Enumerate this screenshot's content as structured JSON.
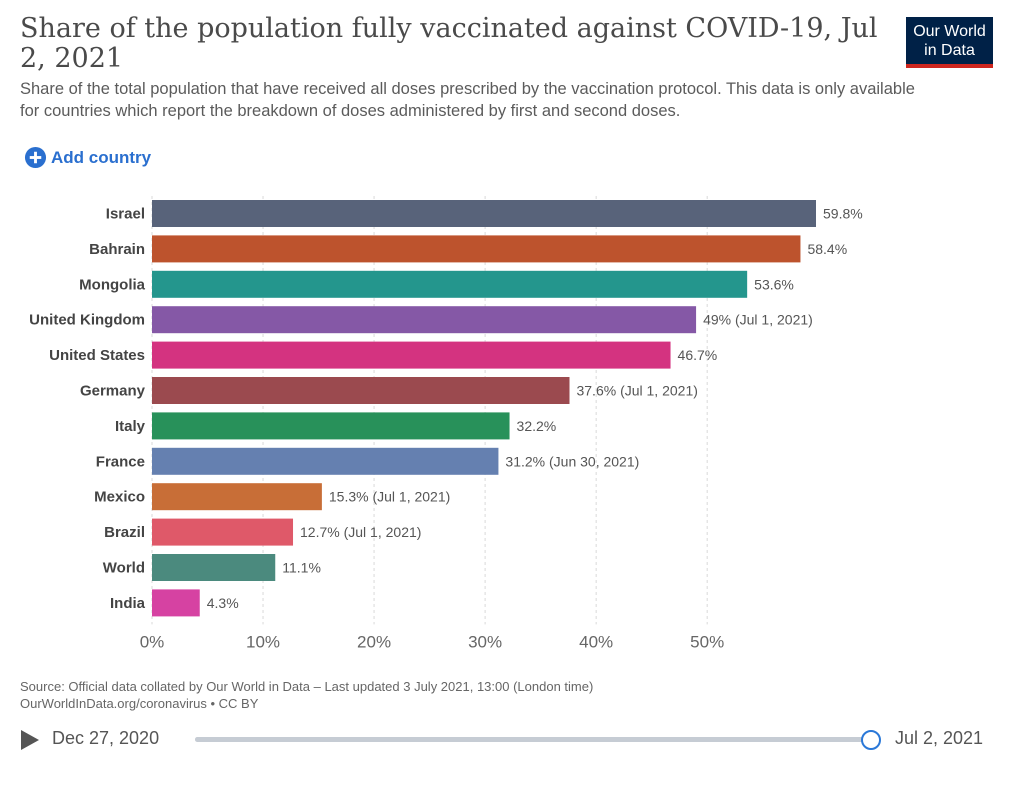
{
  "header": {
    "title": "Share of the population fully vaccinated against COVID-19, Jul 2, 2021",
    "subtitle": "Share of the total population that have received all doses prescribed by the vaccination protocol. This data is only available for countries which report the breakdown of doses administered by first and second doses.",
    "logo_line1": "Our World",
    "logo_line2": "in Data",
    "add_country_label": "Add country"
  },
  "chart_data": {
    "type": "bar",
    "orientation": "horizontal",
    "categories": [
      "Israel",
      "Bahrain",
      "Mongolia",
      "United Kingdom",
      "United States",
      "Germany",
      "Italy",
      "France",
      "Mexico",
      "Brazil",
      "World",
      "India"
    ],
    "values": [
      59.8,
      58.4,
      53.6,
      49,
      46.7,
      37.6,
      32.2,
      31.2,
      15.3,
      12.7,
      11.1,
      4.3
    ],
    "value_labels": [
      "59.8%",
      "58.4%",
      "53.6%",
      "49% (Jul 1, 2021)",
      "46.7%",
      "37.6% (Jul 1, 2021)",
      "32.2%",
      "31.2% (Jun 30, 2021)",
      "15.3% (Jul 1, 2021)",
      "12.7% (Jul 1, 2021)",
      "11.1%",
      "4.3%"
    ],
    "colors": [
      "#58637a",
      "#bd532d",
      "#24968d",
      "#8558a6",
      "#d43380",
      "#9b4a4f",
      "#28915a",
      "#6580b0",
      "#c86e37",
      "#df5969",
      "#4b8a7e",
      "#d642a2"
    ],
    "xticks": [
      "0%",
      "10%",
      "20%",
      "30%",
      "40%",
      "50%"
    ],
    "xtick_values": [
      0,
      10,
      20,
      30,
      40,
      50
    ],
    "xlim": [
      0,
      59.8
    ],
    "grid": true
  },
  "footer": {
    "source_line1": "Source: Official data collated by Our World in Data – Last updated 3 July 2021, 13:00 (London time)",
    "source_line2": "OurWorldInData.org/coronavirus • CC BY"
  },
  "timeline": {
    "start_label": "Dec 27, 2020",
    "end_label": "Jul 2, 2021",
    "position_fraction": 1.0
  }
}
